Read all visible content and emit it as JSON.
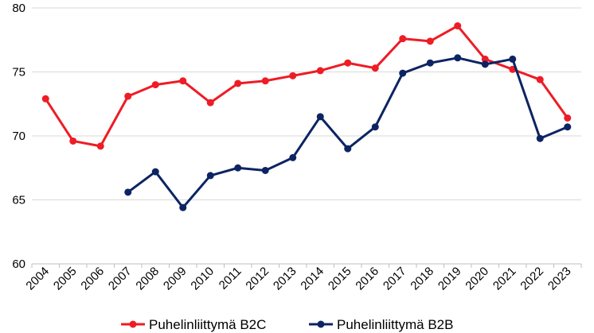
{
  "chart_data": {
    "type": "line",
    "title": "",
    "xlabel": "",
    "ylabel": "",
    "ylim": [
      60,
      80
    ],
    "yticks": [
      60,
      65,
      70,
      75,
      80
    ],
    "grid": true,
    "legend_position": "bottom",
    "categories": [
      "2004",
      "2005",
      "2006",
      "2007",
      "2008",
      "2009",
      "2010",
      "2011",
      "2012",
      "2013",
      "2014",
      "2015",
      "2016",
      "2017",
      "2018",
      "2019",
      "2020",
      "2021",
      "2022",
      "2023"
    ],
    "series": [
      {
        "name": "Puhelinliittymä B2C",
        "color": "#ee1c25",
        "values": [
          72.9,
          69.6,
          69.2,
          73.1,
          74.0,
          74.3,
          72.6,
          74.1,
          74.3,
          74.7,
          75.1,
          75.7,
          75.3,
          77.6,
          77.4,
          78.6,
          76.0,
          75.2,
          74.4,
          71.4
        ]
      },
      {
        "name": "Puhelinliittymä B2B",
        "color": "#0d2463",
        "values": [
          null,
          null,
          null,
          65.6,
          67.2,
          64.4,
          66.9,
          67.5,
          67.3,
          68.3,
          71.5,
          69.0,
          70.7,
          74.9,
          75.7,
          76.1,
          75.6,
          76.0,
          69.8,
          70.7
        ]
      }
    ]
  }
}
